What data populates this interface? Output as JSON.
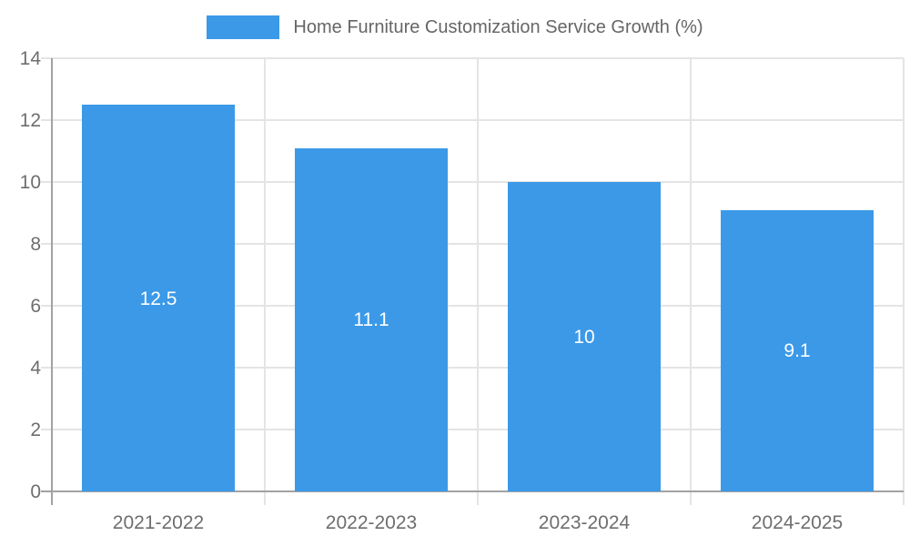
{
  "chart_data": {
    "type": "bar",
    "title": "Home Furniture Customization Service Growth (%)",
    "categories": [
      "2021-2022",
      "2022-2023",
      "2023-2024",
      "2024-2025"
    ],
    "values": [
      12.5,
      11.1,
      10,
      9.1
    ],
    "value_labels": [
      "12.5",
      "11.1",
      "10",
      "9.1"
    ],
    "yticks": [
      "0",
      "2",
      "4",
      "6",
      "8",
      "10",
      "12",
      "14"
    ],
    "ylim": [
      0,
      14
    ],
    "ytick_step": 2,
    "grid": true,
    "legend_position": "top-center",
    "value_label_position": "inside-center",
    "colors": {
      "bar": "#3B99E8",
      "bar_label": "#ffffff",
      "grid": "#e4e4e4",
      "axis": "#a2a2a2",
      "tick_label": "#6e6e6e",
      "legend_text": "#666666"
    }
  }
}
